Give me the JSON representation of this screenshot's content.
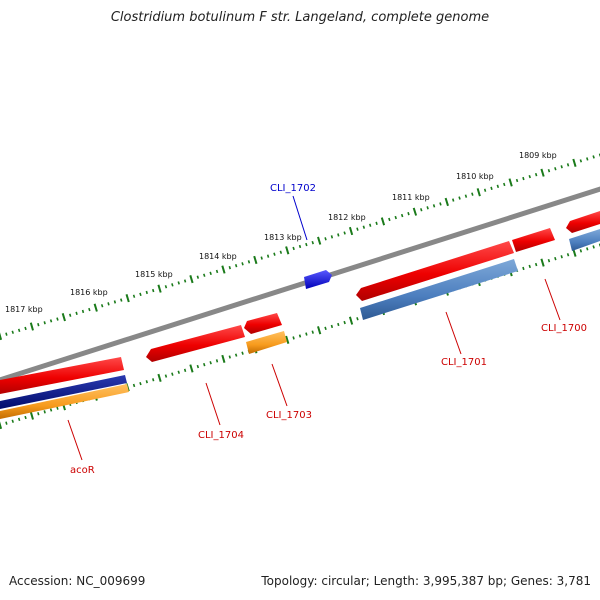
{
  "title": "Clostridium botulinum F str. Langeland, complete genome",
  "footer": {
    "accession": "Accession: NC_009699",
    "summary": "Topology: circular; Length: 3,995,387 bp; Genes: 3,781"
  },
  "ruler": {
    "outer_labels": [
      "1817 kbp",
      "1816 kbp",
      "1815 kbp",
      "1814 kbp",
      "1813 kbp",
      "1812 kbp",
      "1811 kbp",
      "1810 kbp",
      "1809 kbp"
    ]
  },
  "colors": {
    "backbone": "#888888",
    "forward_gene": "#ee0000",
    "reverse_gene": "#ee0000",
    "cds_blue": "#4d7fbf",
    "orange": "#f79b1d",
    "navy": "#000a7a",
    "highlight_gene": "#0000ee",
    "tick": "#1a7a1a",
    "label_red": "#cc0000",
    "label_blue": "#0000cc"
  },
  "gene_labels": [
    {
      "id": "cli1702",
      "text": "CLI_1702",
      "color": "blue"
    },
    {
      "id": "cli1701",
      "text": "CLI_1701",
      "color": "red"
    },
    {
      "id": "cli1700",
      "text": "CLI_1700",
      "color": "red"
    },
    {
      "id": "cli1703",
      "text": "CLI_1703",
      "color": "red"
    },
    {
      "id": "cli1704",
      "text": "CLI_1704",
      "color": "red"
    },
    {
      "id": "acor",
      "text": "acoR",
      "color": "red"
    }
  ]
}
